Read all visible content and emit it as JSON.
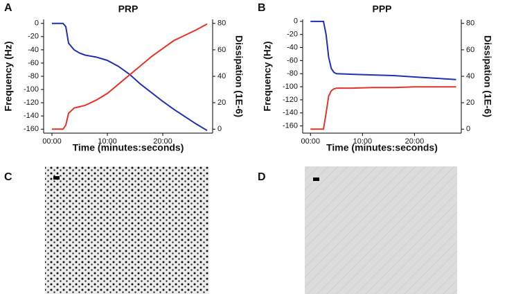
{
  "panel_labels": [
    "A",
    "B",
    "C",
    "D"
  ],
  "chart_data": [
    {
      "type": "line",
      "title": "PRP",
      "xlabel": "Time (minutes:seconds)",
      "ylabel": "Frequency (Hz)",
      "y2label": "Dissipation (1E-6)",
      "x": [
        0,
        2,
        2.5,
        3,
        4,
        5,
        6,
        8,
        10,
        12,
        14,
        16,
        18,
        20,
        22,
        24,
        26,
        28
      ],
      "series": [
        {
          "color": "#1f2fb5",
          "axis": "y",
          "values": [
            0,
            0,
            -5,
            -30,
            -40,
            -45,
            -48,
            -51,
            -56,
            -65,
            -77,
            -92,
            -105,
            -118,
            -130,
            -141,
            -152,
            -162
          ]
        },
        {
          "color": "#e8302a",
          "axis": "y2",
          "values": [
            0,
            0,
            3,
            12,
            16,
            17,
            18,
            22,
            27,
            34,
            41,
            48,
            55,
            61,
            67,
            71,
            75,
            79.5
          ]
        }
      ],
      "xlim": [
        -1.5,
        29
      ],
      "xticks": [
        {
          "value": 0,
          "label": "00:00"
        },
        {
          "value": 10,
          "label": "10:00"
        },
        {
          "value": 20,
          "label": "20:00"
        }
      ],
      "ylim": [
        -166,
        6
      ],
      "yticks": [
        0,
        -20,
        -40,
        -60,
        -80,
        -100,
        -120,
        -140,
        -160
      ],
      "y2lim": [
        -3,
        83
      ],
      "y2ticks": [
        0,
        20,
        40,
        60,
        80
      ]
    },
    {
      "type": "line",
      "title": "PPP",
      "xlabel": "Time (minutes:seconds)",
      "ylabel": "Frequency (Hz)",
      "y2label": "Dissipation (1E-6)",
      "x": [
        0,
        2.5,
        3,
        3.5,
        4,
        4.5,
        5,
        8,
        12,
        16,
        20,
        24,
        28
      ],
      "series": [
        {
          "color": "#1f2fb5",
          "axis": "y",
          "values": [
            0,
            0,
            -20,
            -55,
            -72,
            -78,
            -80,
            -81,
            -82,
            -83,
            -85,
            -87,
            -89
          ]
        },
        {
          "color": "#e8302a",
          "axis": "y2",
          "values": [
            0,
            0,
            12,
            25,
            29,
            30.5,
            31,
            31,
            31.5,
            31.5,
            32,
            32,
            32
          ]
        }
      ],
      "xlim": [
        -1.5,
        29
      ],
      "xticks": [
        {
          "value": 0,
          "label": "00:00"
        },
        {
          "value": 10,
          "label": "10:00"
        },
        {
          "value": 20,
          "label": "20:00"
        }
      ],
      "ylim": [
        -171,
        3
      ],
      "yticks": [
        0,
        -20,
        -40,
        -60,
        -80,
        -100,
        -120,
        -140,
        -160
      ],
      "y2lim": [
        -3,
        83
      ],
      "y2ticks": [
        0,
        20,
        40,
        60,
        80
      ]
    }
  ]
}
